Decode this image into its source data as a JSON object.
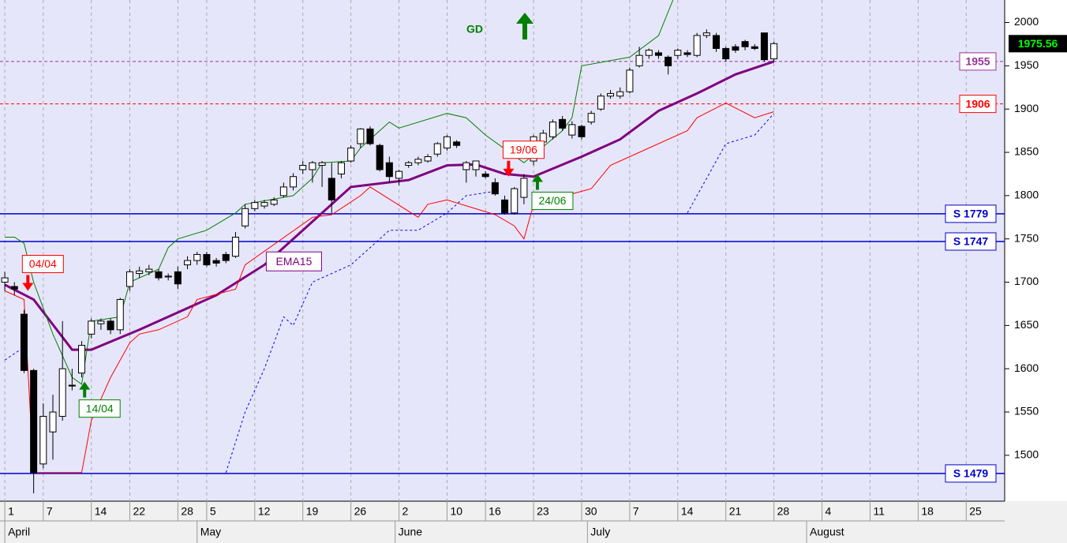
{
  "chart_data": {
    "type": "candlestick",
    "xlim": [
      -0.5,
      104
    ],
    "ylim": [
      1447,
      2026
    ],
    "yticks": [
      1500,
      1550,
      1600,
      1650,
      1700,
      1750,
      1800,
      1850,
      1900,
      1950,
      2000
    ],
    "xticks": [
      {
        "value": 0,
        "label": "1"
      },
      {
        "value": 4,
        "label": "7"
      },
      {
        "value": 9,
        "label": "14"
      },
      {
        "value": 13,
        "label": "22"
      },
      {
        "value": 18,
        "label": "28"
      },
      {
        "value": 21,
        "label": "5"
      },
      {
        "value": 26,
        "label": "12"
      },
      {
        "value": 31,
        "label": "19"
      },
      {
        "value": 36,
        "label": "26"
      },
      {
        "value": 41,
        "label": "2"
      },
      {
        "value": 46,
        "label": "10"
      },
      {
        "value": 50,
        "label": "16"
      },
      {
        "value": 55,
        "label": "23"
      },
      {
        "value": 60,
        "label": "30"
      },
      {
        "value": 65,
        "label": "7"
      },
      {
        "value": 70,
        "label": "14"
      },
      {
        "value": 75,
        "label": "21"
      },
      {
        "value": 80,
        "label": "28"
      },
      {
        "value": 85,
        "label": "4"
      },
      {
        "value": 90,
        "label": "11"
      },
      {
        "value": 95,
        "label": "18"
      },
      {
        "value": 100,
        "label": "25"
      }
    ],
    "month_ticks": [
      {
        "value": 0,
        "label": "April"
      },
      {
        "value": 20,
        "label": "May"
      },
      {
        "value": 40.6,
        "label": "June"
      },
      {
        "value": 60.6,
        "label": "July"
      },
      {
        "value": 83.4,
        "label": "August"
      }
    ],
    "grid": true,
    "up_color": "#ffffff",
    "down_color": "#000000",
    "x": [
      0,
      1,
      2,
      3,
      4,
      5,
      6,
      7,
      8,
      9,
      10,
      11,
      12,
      13,
      14,
      15,
      16,
      17,
      18,
      19,
      20,
      21,
      22,
      23,
      24,
      25,
      26,
      27,
      28,
      29,
      30,
      31,
      32,
      33,
      34,
      35,
      36,
      37,
      38,
      39,
      40,
      41,
      42,
      43,
      44,
      45,
      46,
      47,
      48,
      49,
      50,
      51,
      52,
      53,
      54,
      55,
      56,
      57,
      58,
      59,
      60,
      61,
      62,
      63,
      64,
      65,
      66,
      67,
      68,
      69,
      70,
      71,
      72,
      73,
      74,
      75,
      76,
      77,
      78,
      79,
      80
    ],
    "open": [
      1700,
      1695,
      1663,
      1598,
      1490,
      1527,
      1545,
      1581,
      1595,
      1640,
      1652,
      1655,
      1645,
      1695,
      1710,
      1712,
      1712,
      1706,
      1712,
      1720,
      1725,
      1732,
      1725,
      1732,
      1730,
      1765,
      1785,
      1788,
      1790,
      1800,
      1810,
      1830,
      1830,
      1835,
      1820,
      1825,
      1840,
      1860,
      1877,
      1858,
      1838,
      1820,
      1835,
      1838,
      1840,
      1848,
      1855,
      1862,
      1830,
      1830,
      1825,
      1815,
      1795,
      1780,
      1798,
      1840,
      1862,
      1868,
      1888,
      1870,
      1880,
      1885,
      1900,
      1915,
      1915,
      1920,
      1950,
      1962,
      1965,
      1960,
      1962,
      1965,
      1962,
      1985,
      1985,
      1970,
      1972,
      1978,
      1972,
      1988,
      1958
    ],
    "high": [
      1712,
      1700,
      1668,
      1600,
      1560,
      1570,
      1655,
      1600,
      1632,
      1658,
      1658,
      1658,
      1682,
      1715,
      1718,
      1720,
      1715,
      1710,
      1718,
      1730,
      1735,
      1735,
      1728,
      1735,
      1758,
      1790,
      1795,
      1795,
      1798,
      1815,
      1826,
      1840,
      1840,
      1840,
      1838,
      1840,
      1858,
      1878,
      1880,
      1860,
      1845,
      1830,
      1840,
      1845,
      1848,
      1862,
      1870,
      1864,
      1840,
      1840,
      1828,
      1820,
      1800,
      1810,
      1825,
      1870,
      1876,
      1888,
      1892,
      1886,
      1882,
      1898,
      1918,
      1922,
      1925,
      1948,
      1972,
      1970,
      1968,
      1962,
      1970,
      1968,
      1988,
      1992,
      1988,
      1972,
      1975,
      1980,
      1975,
      1988,
      1978
    ],
    "low": [
      1690,
      1685,
      1595,
      1456,
      1485,
      1495,
      1540,
      1575,
      1590,
      1635,
      1645,
      1640,
      1640,
      1690,
      1705,
      1708,
      1702,
      1702,
      1692,
      1715,
      1720,
      1718,
      1718,
      1722,
      1728,
      1762,
      1782,
      1785,
      1788,
      1798,
      1806,
      1825,
      1815,
      1810,
      1780,
      1820,
      1838,
      1855,
      1858,
      1828,
      1815,
      1812,
      1832,
      1835,
      1838,
      1845,
      1852,
      1855,
      1815,
      1822,
      1820,
      1800,
      1778,
      1778,
      1790,
      1835,
      1858,
      1865,
      1875,
      1866,
      1865,
      1882,
      1898,
      1912,
      1912,
      1918,
      1948,
      1958,
      1958,
      1940,
      1958,
      1960,
      1960,
      1982,
      1966,
      1955,
      1965,
      1968,
      1968,
      1955,
      1955
    ],
    "close": [
      1705,
      1692,
      1598,
      1480,
      1545,
      1550,
      1600,
      1580,
      1627,
      1655,
      1655,
      1645,
      1680,
      1712,
      1713,
      1715,
      1705,
      1707,
      1698,
      1725,
      1732,
      1720,
      1722,
      1725,
      1752,
      1785,
      1792,
      1792,
      1795,
      1810,
      1822,
      1835,
      1838,
      1838,
      1795,
      1838,
      1855,
      1877,
      1860,
      1830,
      1822,
      1828,
      1838,
      1842,
      1845,
      1860,
      1868,
      1858,
      1838,
      1840,
      1822,
      1802,
      1780,
      1808,
      1820,
      1868,
      1872,
      1885,
      1878,
      1882,
      1868,
      1895,
      1915,
      1918,
      1920,
      1945,
      1962,
      1968,
      1962,
      1950,
      1968,
      1963,
      1985,
      1988,
      1970,
      1958,
      1968,
      1972,
      1970,
      1957,
      1975.56
    ],
    "lines": [
      {
        "label": "EMA15",
        "color": "#800080",
        "width": 3,
        "dashed": false,
        "x": [
          0,
          3,
          7,
          9,
          14,
          18,
          22,
          27,
          32,
          36,
          42,
          46,
          49,
          52,
          55,
          60,
          64,
          68,
          72,
          76,
          80
        ],
        "values": [
          1697,
          1680,
          1622,
          1622,
          1645,
          1665,
          1685,
          1720,
          1770,
          1810,
          1818,
          1835,
          1836,
          1825,
          1822,
          1845,
          1865,
          1898,
          1918,
          1940,
          1955
        ]
      },
      {
        "color": "#008000",
        "width": 1,
        "dashed": false,
        "x": [
          0,
          1,
          2,
          3,
          5,
          7,
          8,
          9,
          12,
          13,
          16,
          17,
          18,
          21,
          24,
          25,
          30,
          32,
          33,
          36,
          37,
          40,
          41,
          46,
          48,
          50,
          54,
          58,
          59,
          60,
          65,
          68,
          69.5
        ],
        "values": [
          1752,
          1752,
          1745,
          1700,
          1640,
          1590,
          1582,
          1655,
          1660,
          1700,
          1715,
          1740,
          1750,
          1760,
          1780,
          1790,
          1800,
          1820,
          1838,
          1840,
          1855,
          1885,
          1878,
          1895,
          1890,
          1870,
          1838,
          1875,
          1890,
          1950,
          1960,
          1985,
          2026
        ]
      },
      {
        "color": "#ff0000",
        "width": 1,
        "dashed": false,
        "x": [
          0,
          2,
          3,
          7,
          8,
          9,
          11,
          13,
          14,
          16,
          19,
          20,
          24,
          25,
          32,
          34,
          37,
          38,
          43,
          44,
          46,
          51,
          53,
          54,
          55,
          60,
          61,
          63,
          64,
          71,
          72,
          75,
          78,
          80
        ],
        "values": [
          1690,
          1680,
          1480,
          1480,
          1480,
          1540,
          1590,
          1630,
          1640,
          1645,
          1660,
          1680,
          1692,
          1720,
          1775,
          1778,
          1800,
          1810,
          1775,
          1790,
          1795,
          1778,
          1765,
          1750,
          1790,
          1805,
          1808,
          1835,
          1840,
          1875,
          1890,
          1907,
          1890,
          1897
        ]
      },
      {
        "color": "#0000ff",
        "width": 1,
        "dashed": true,
        "x": [
          0,
          2,
          12,
          23,
          25,
          27,
          29,
          30,
          32,
          36,
          38,
          40,
          43,
          46,
          48,
          51,
          60,
          71,
          73,
          75,
          78,
          80
        ],
        "values": [
          1610,
          1625,
          null,
          1480,
          1550,
          1600,
          1660,
          1650,
          1700,
          1720,
          1740,
          1760,
          1760,
          1780,
          1800,
          1805,
          null,
          1780,
          1820,
          1860,
          1870,
          1895
        ]
      }
    ],
    "hlines": [
      {
        "value": 1955,
        "label": "1955",
        "color": "#993399",
        "dashed": true
      },
      {
        "value": 1906,
        "label": "1906",
        "color": "#ff0000",
        "dashed": true
      },
      {
        "value": 1779,
        "label": "S 1779",
        "color": "#0000cc",
        "dashed": false
      },
      {
        "value": 1747,
        "label": "S 1747",
        "color": "#0000cc",
        "dashed": false
      },
      {
        "value": 1479,
        "label": "S 1479",
        "color": "#0000cc",
        "dashed": false
      }
    ],
    "signals": [
      {
        "label": "04/04",
        "x": 2.4,
        "value": 1690,
        "direction": "down",
        "color": "#ff0000"
      },
      {
        "label": "14/04",
        "x": 8.3,
        "value": 1585,
        "direction": "up",
        "color": "#008000"
      },
      {
        "label": "19/06",
        "x": 52.4,
        "value": 1822,
        "direction": "down",
        "color": "#ff0000"
      },
      {
        "label": "24/06",
        "x": 55.4,
        "value": 1825,
        "direction": "up",
        "color": "#008000"
      }
    ],
    "annotation": {
      "text": "GD",
      "color": "#008000"
    },
    "last_price": 1975.56
  }
}
